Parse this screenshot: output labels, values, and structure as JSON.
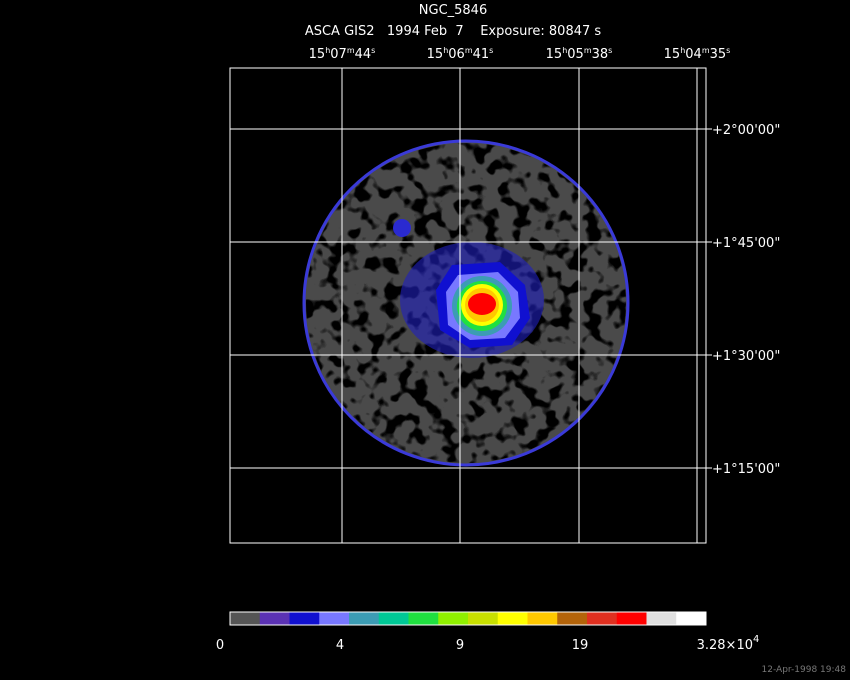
{
  "header": {
    "title": "NGC_5846",
    "subtitle": "ASCA GIS2   1994 Feb  7    Exposure: 80847 s"
  },
  "ra_labels": [
    [
      "15",
      "h",
      "07",
      "m",
      "44",
      "s"
    ],
    [
      "15",
      "h",
      "06",
      "m",
      "41",
      "s"
    ],
    [
      "15",
      "h",
      "05",
      "m",
      "38",
      "s"
    ],
    [
      "15",
      "h",
      "04",
      "m",
      "35",
      "s"
    ]
  ],
  "dec_labels": [
    "+2°00'00\"",
    "+1°45'00\"",
    "+1°30'00\"",
    "+1°15'00\""
  ],
  "colorbar": {
    "colors": [
      "#555555",
      "#5b32b4",
      "#1010d0",
      "#7878ff",
      "#3c9cb4",
      "#00c896",
      "#20e040",
      "#90f000",
      "#c8e000",
      "#ffff00",
      "#ffc800",
      "#b4640a",
      "#e03020",
      "#ff0000",
      "#e0e0e0",
      "#ffffff"
    ],
    "labels": [
      [
        "0"
      ],
      [
        "4"
      ],
      [
        "9"
      ],
      [
        "19"
      ],
      [
        "3.28×10",
        "4"
      ]
    ]
  },
  "footer": "12-Apr-1998 19:48"
}
